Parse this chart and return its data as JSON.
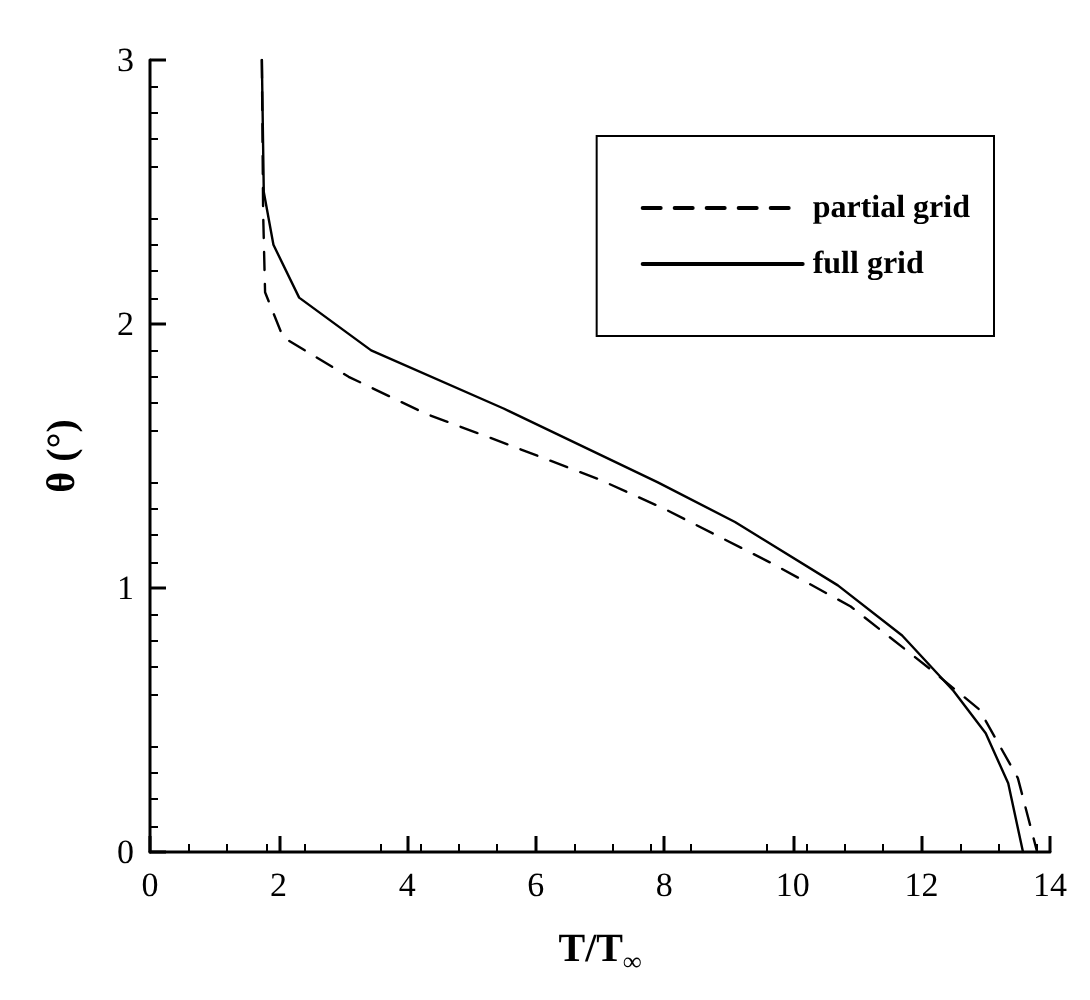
{
  "chart_data": {
    "type": "line",
    "xlabel": "T/T$_{∞}$",
    "ylabel": "θ (°)",
    "xlim": [
      0,
      14
    ],
    "ylim": [
      0,
      3
    ],
    "xticks": [
      0,
      2,
      4,
      6,
      8,
      10,
      12,
      14
    ],
    "yticks": [
      0,
      1,
      2,
      3
    ],
    "grid": false,
    "legend": "top right",
    "marker": "none",
    "series": [
      {
        "name": "partial grid",
        "color": "#000000",
        "line_style": "dashed",
        "x": [
          1.74,
          1.76,
          1.79,
          2.07,
          3.09,
          4.29,
          5.5,
          7.0,
          8.0,
          9.7,
          10.9,
          12.1,
          12.9,
          13.5,
          13.8
        ],
        "values": [
          3,
          2.42,
          2.12,
          1.95,
          1.8,
          1.66,
          1.55,
          1.41,
          1.3,
          1.09,
          0.93,
          0.7,
          0.54,
          0.28,
          0
        ]
      },
      {
        "name": "full grid",
        "color": "#000000",
        "line_style": "solid",
        "x": [
          1.74,
          1.77,
          1.92,
          2.32,
          3.44,
          5.5,
          7.9,
          9.1,
          10.7,
          11.7,
          12.5,
          13.0,
          13.35,
          13.58
        ],
        "values": [
          3,
          2.5,
          2.3,
          2.1,
          1.9,
          1.68,
          1.4,
          1.25,
          1.01,
          0.82,
          0.61,
          0.45,
          0.26,
          0
        ]
      }
    ]
  }
}
